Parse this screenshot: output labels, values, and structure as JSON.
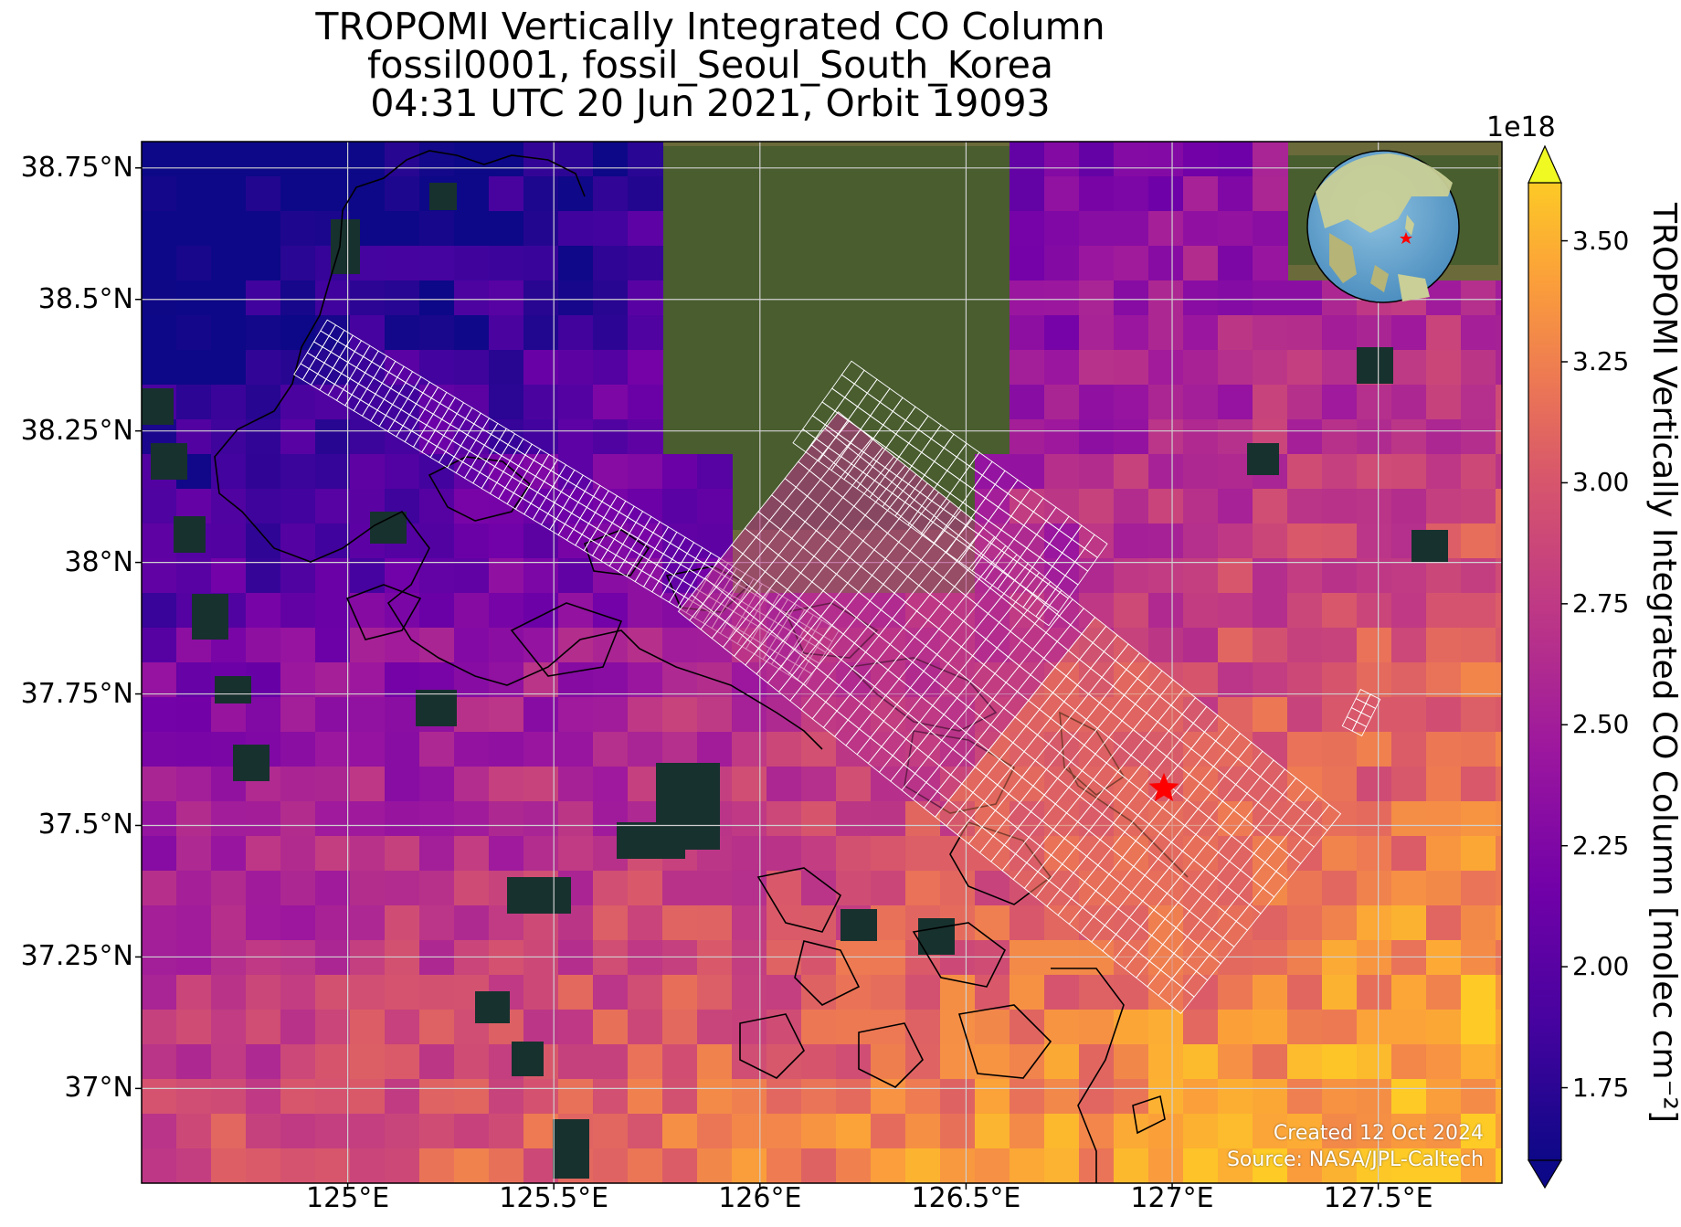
{
  "title": {
    "line1": "TROPOMI Vertically Integrated CO Column",
    "line2": "fossil0001, fossil_Seoul_South_Korea",
    "line3": "04:31 UTC 20 Jun 2021, Orbit 19093"
  },
  "map": {
    "lon_range": [
      124.5,
      127.8
    ],
    "lat_range": [
      36.82,
      38.8
    ],
    "lat_ticks": [
      {
        "value": 38.75,
        "label": "38.75°N"
      },
      {
        "value": 38.5,
        "label": "38.5°N"
      },
      {
        "value": 38.25,
        "label": "38.25°N"
      },
      {
        "value": 38.0,
        "label": "38°N"
      },
      {
        "value": 37.75,
        "label": "37.75°N"
      },
      {
        "value": 37.5,
        "label": "37.5°N"
      },
      {
        "value": 37.25,
        "label": "37.25°N"
      },
      {
        "value": 37.0,
        "label": "37°N"
      }
    ],
    "lon_ticks": [
      {
        "value": 125.0,
        "label": "125°E"
      },
      {
        "value": 125.5,
        "label": "125.5°E"
      },
      {
        "value": 126.0,
        "label": "126°E"
      },
      {
        "value": 126.5,
        "label": "126.5°E"
      },
      {
        "value": 127.0,
        "label": "127°E"
      },
      {
        "value": 127.5,
        "label": "127.5°E"
      }
    ],
    "grid": true,
    "target_marker": {
      "lon": 126.98,
      "lat": 37.57,
      "color": "#ff0000",
      "shape": "star"
    }
  },
  "colorbar": {
    "exponent_label": "1e18",
    "label": "TROPOMI Vertically Integrated CO Column [molec cm$^{-2}$]",
    "label_display": "TROPOMI Vertically Integrated CO Column [molec cm⁻²]",
    "range": [
      1.6,
      3.62
    ],
    "ticks": [
      "1.75",
      "2.00",
      "2.25",
      "2.50",
      "2.75",
      "3.00",
      "3.25",
      "3.50"
    ],
    "tick_values": [
      1.75,
      2.0,
      2.25,
      2.5,
      2.75,
      3.0,
      3.25,
      3.5
    ],
    "colormap": "plasma",
    "extend": "both"
  },
  "credits": {
    "created": "Created 12 Oct 2024",
    "source": "Source: NASA/JPL-Caltech"
  },
  "colors": {
    "land": "#6b6a3c",
    "water": "#17312e",
    "grid": "#d0d0d0",
    "sounding_outline": "#ffffff",
    "marker": "#ff0000"
  }
}
